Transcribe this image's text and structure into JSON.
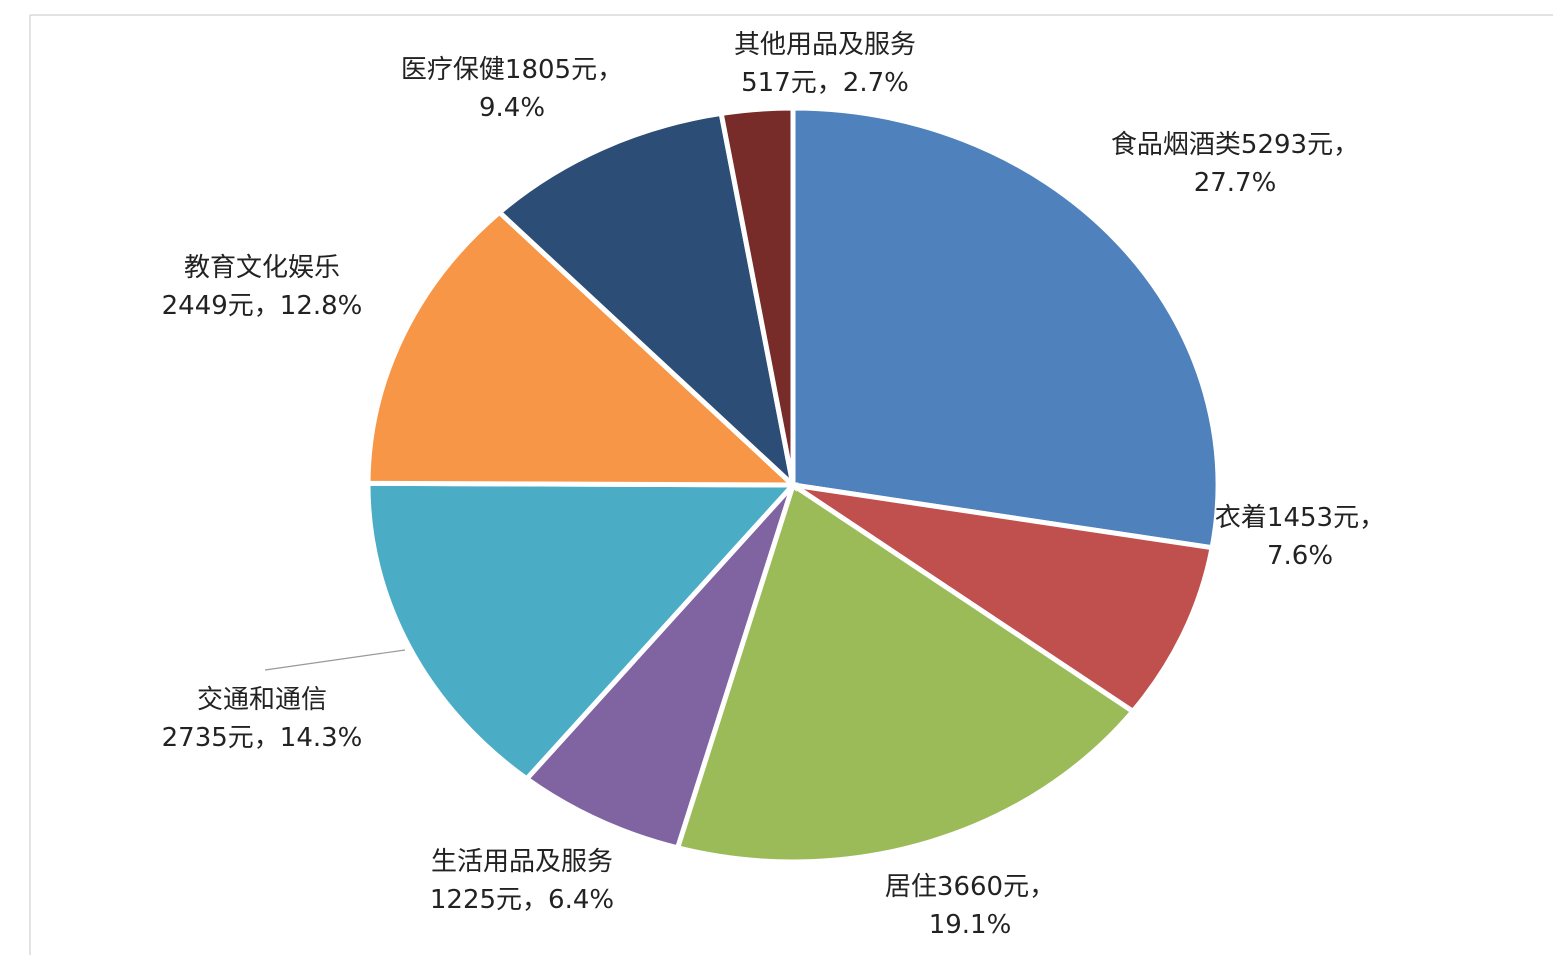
{
  "chart_data": {
    "type": "pie",
    "categories": [
      "食品烟酒类",
      "衣着",
      "居住",
      "生活用品及服务",
      "交通和通信",
      "教育文化娱乐",
      "医疗保健",
      "其他用品及服务"
    ],
    "values": [
      5293,
      1453,
      3660,
      1225,
      2735,
      2449,
      1805,
      517
    ],
    "value_labels": [
      "5293元，",
      "1453元，",
      "3660元，",
      "1225元，",
      "2735元，",
      "2449元，",
      "1805元，",
      "517元，"
    ],
    "percents": [
      27.7,
      7.6,
      19.1,
      6.4,
      14.3,
      12.8,
      9.4,
      2.7
    ],
    "percent_labels": [
      "27.7%",
      "7.6%",
      "19.1%",
      "6.4%",
      "14.3%",
      "12.8%",
      "9.4%",
      "2.7%"
    ],
    "colors": [
      "#4f81bd",
      "#c0504d",
      "#9bbb59",
      "#8064a2",
      "#4bacc6",
      "#f79646",
      "#2c4d75",
      "#772c2a"
    ]
  }
}
